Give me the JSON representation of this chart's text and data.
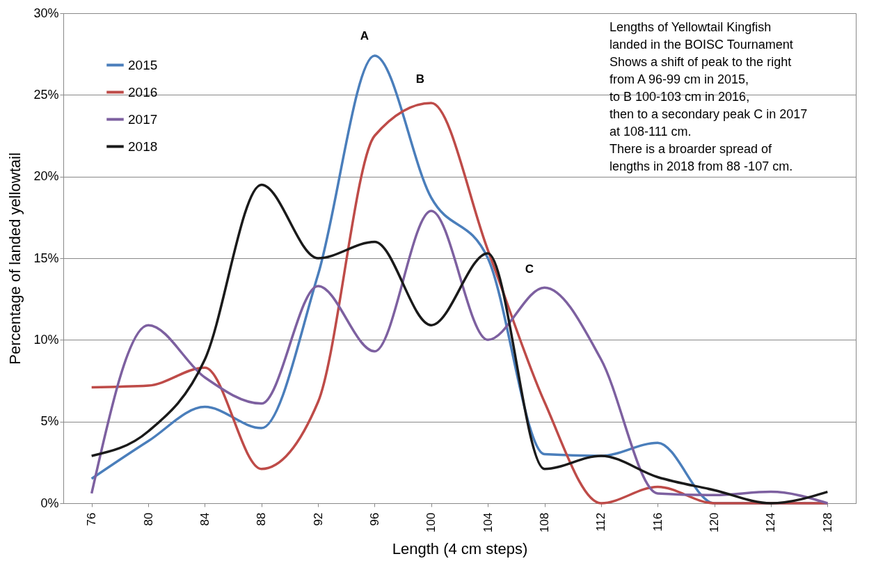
{
  "chart_data": {
    "type": "line",
    "xlabel": "Length  (4 cm steps)",
    "ylabel": "Percentage of landed  yellowtail",
    "categories": [
      "76",
      "80",
      "84",
      "88",
      "92",
      "96",
      "100",
      "104",
      "108",
      "112",
      "116",
      "120",
      "124",
      "128"
    ],
    "series": [
      {
        "name": "2015",
        "color": "#4a7ebb",
        "values": [
          1.5,
          3.8,
          5.9,
          4.6,
          14,
          27.4,
          18.7,
          15,
          3.0,
          2.9,
          3.7,
          0,
          0,
          0
        ]
      },
      {
        "name": "2016",
        "color": "#be4b48",
        "values": [
          7.1,
          7.2,
          8.3,
          2.1,
          6.2,
          22.5,
          24.5,
          15.5,
          6.2,
          0,
          1.0,
          0,
          0,
          0
        ]
      },
      {
        "name": "2017",
        "color": "#7d60a0",
        "values": [
          0.6,
          10.9,
          7.7,
          6.1,
          13.3,
          9.3,
          17.9,
          10,
          13.2,
          8.8,
          0.6,
          0.5,
          0.7,
          0
        ]
      },
      {
        "name": "2018",
        "color": "#1a1a1a",
        "values": [
          2.9,
          4.4,
          8.8,
          19.5,
          15,
          16,
          10.9,
          15.3,
          2.1,
          2.9,
          1.6,
          0.8,
          0,
          0.7
        ]
      }
    ],
    "ylim": [
      0,
      30
    ],
    "yticks": [
      {
        "value": 0,
        "label": "0%"
      },
      {
        "value": 5,
        "label": "5%"
      },
      {
        "value": 10,
        "label": "10%"
      },
      {
        "value": 15,
        "label": "15%"
      },
      {
        "value": 20,
        "label": "20%"
      },
      {
        "value": 25,
        "label": "25%"
      },
      {
        "value": 30,
        "label": "30%"
      }
    ],
    "grid": "y",
    "legend": "top left",
    "marker": "none",
    "line_style": "solid",
    "annotations": [
      "A",
      "B",
      "C",
      "Lengths of Yellowtail Kingfish",
      "landed in the BOISC Tournament",
      "Shows a shift of peak to the right",
      "from A 96-99 cm  in 2015,",
      "to B 100-103 cm in 2016,",
      "then to a secondary peak C in 2017",
      "at 108-111 cm.",
      "There is a broarder spread of",
      "lengths in 2018 from 88 -107 cm."
    ]
  }
}
